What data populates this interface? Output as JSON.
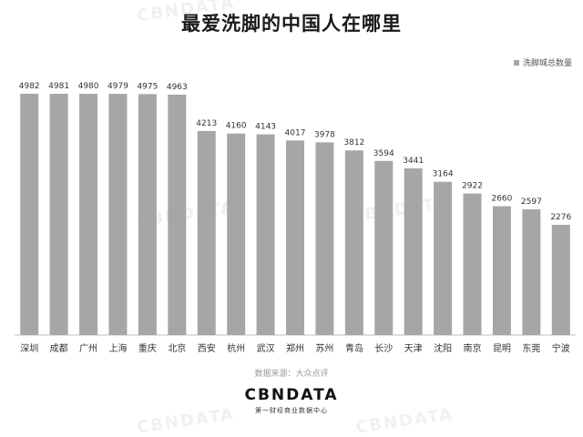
{
  "title": "最爱洗脚的中国人在哪里",
  "legend_label": "洗脚城总数量",
  "source": "数据来源：大众点评",
  "logo": {
    "text": "CBNDATA",
    "subtitle": "第一财经商业数据中心"
  },
  "watermark": "CBNDATA",
  "colors": {
    "bar": "#a6a6a6",
    "axis": "#bfbfbf",
    "label": "#333333"
  },
  "chart_data": {
    "type": "bar",
    "categories": [
      "深圳",
      "成都",
      "广州",
      "上海",
      "重庆",
      "北京",
      "西安",
      "杭州",
      "武汉",
      "郑州",
      "苏州",
      "青岛",
      "长沙",
      "天津",
      "沈阳",
      "南京",
      "昆明",
      "东莞",
      "宁波"
    ],
    "series": [
      {
        "name": "洗脚城总数量",
        "values": [
          4982,
          4981,
          4980,
          4979,
          4975,
          4963,
          4213,
          4160,
          4143,
          4017,
          3978,
          3812,
          3594,
          3441,
          3164,
          2922,
          2660,
          2597,
          2276
        ]
      }
    ],
    "ylim": [
      0,
      5000
    ],
    "grid": false,
    "legend": "top-right",
    "data_labels": true
  }
}
